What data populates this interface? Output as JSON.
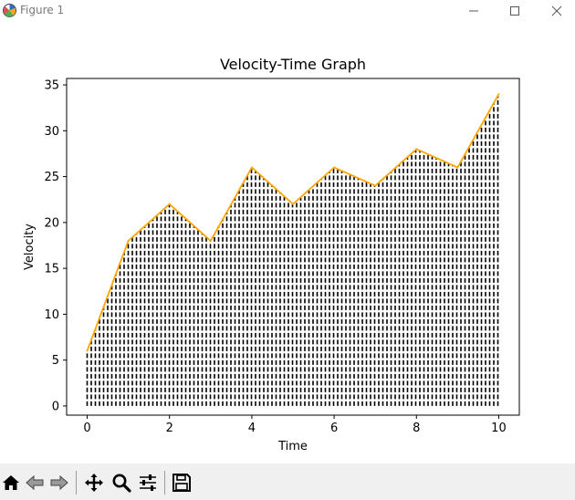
{
  "window": {
    "title": "Figure 1",
    "controls": [
      "minimize",
      "maximize",
      "close"
    ]
  },
  "toolbar": {
    "tools": [
      {
        "name": "home-icon",
        "action": "home"
      },
      {
        "name": "back-icon",
        "action": "back"
      },
      {
        "name": "forward-icon",
        "action": "forward"
      },
      {
        "name": "pan-icon",
        "action": "pan"
      },
      {
        "name": "zoom-icon",
        "action": "zoom"
      },
      {
        "name": "configure-subplots-icon",
        "action": "configure"
      },
      {
        "name": "save-icon",
        "action": "save"
      }
    ]
  },
  "colors": {
    "line": "#ffa500",
    "hatch": "#000000",
    "axes": "#000000",
    "toolbar_bg": "#f0f0f0"
  },
  "chart_data": {
    "type": "area",
    "title": "Velocity-Time Graph",
    "xlabel": "Time",
    "ylabel": "Velocity",
    "x": [
      0,
      1,
      2,
      3,
      4,
      5,
      6,
      7,
      8,
      9,
      10
    ],
    "series": [
      {
        "values": [
          6,
          18,
          22,
          18,
          26,
          22,
          26,
          24,
          28,
          26,
          34
        ]
      }
    ],
    "xticks": [
      0,
      2,
      4,
      6,
      8,
      10
    ],
    "yticks": [
      0,
      5,
      10,
      15,
      20,
      25,
      30,
      35
    ],
    "xlim": [
      -0.5,
      10.5
    ],
    "ylim": [
      -1.0,
      35.7
    ],
    "grid": false,
    "fill": "vertical-hatch"
  }
}
